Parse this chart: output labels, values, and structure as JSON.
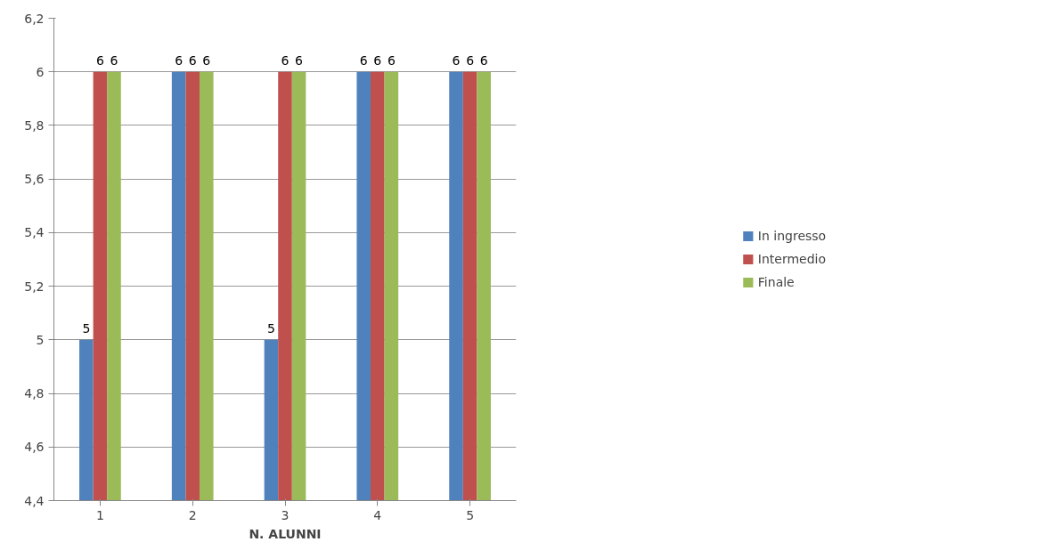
{
  "chart_data": {
    "type": "bar",
    "xlabel": "N. ALUNNI",
    "categories": [
      "1",
      "2",
      "3",
      "4",
      "5"
    ],
    "series": [
      {
        "name": "In ingresso",
        "color": "#4f81bd",
        "values": [
          5,
          6,
          5,
          6,
          6
        ]
      },
      {
        "name": "Intermedio",
        "color": "#c0504d",
        "values": [
          6,
          6,
          6,
          6,
          6
        ]
      },
      {
        "name": "Finale",
        "color": "#9bbb59",
        "values": [
          6,
          6,
          6,
          6,
          6
        ]
      }
    ],
    "ylim": [
      4.4,
      6.2
    ],
    "yticks": [
      {
        "value": 4.4,
        "label": "4,4"
      },
      {
        "value": 4.6,
        "label": "4,6"
      },
      {
        "value": 4.8,
        "label": "4,8"
      },
      5,
      {
        "value": 5.2,
        "label": "5,2"
      },
      {
        "value": 5.4,
        "label": "5,4"
      },
      {
        "value": 5.6,
        "label": "5,6"
      },
      {
        "value": 5.8,
        "label": "5,8"
      },
      6,
      {
        "value": 6.2,
        "label": "6,2"
      }
    ],
    "grid": "y",
    "legend": "right",
    "data_labels": true
  }
}
